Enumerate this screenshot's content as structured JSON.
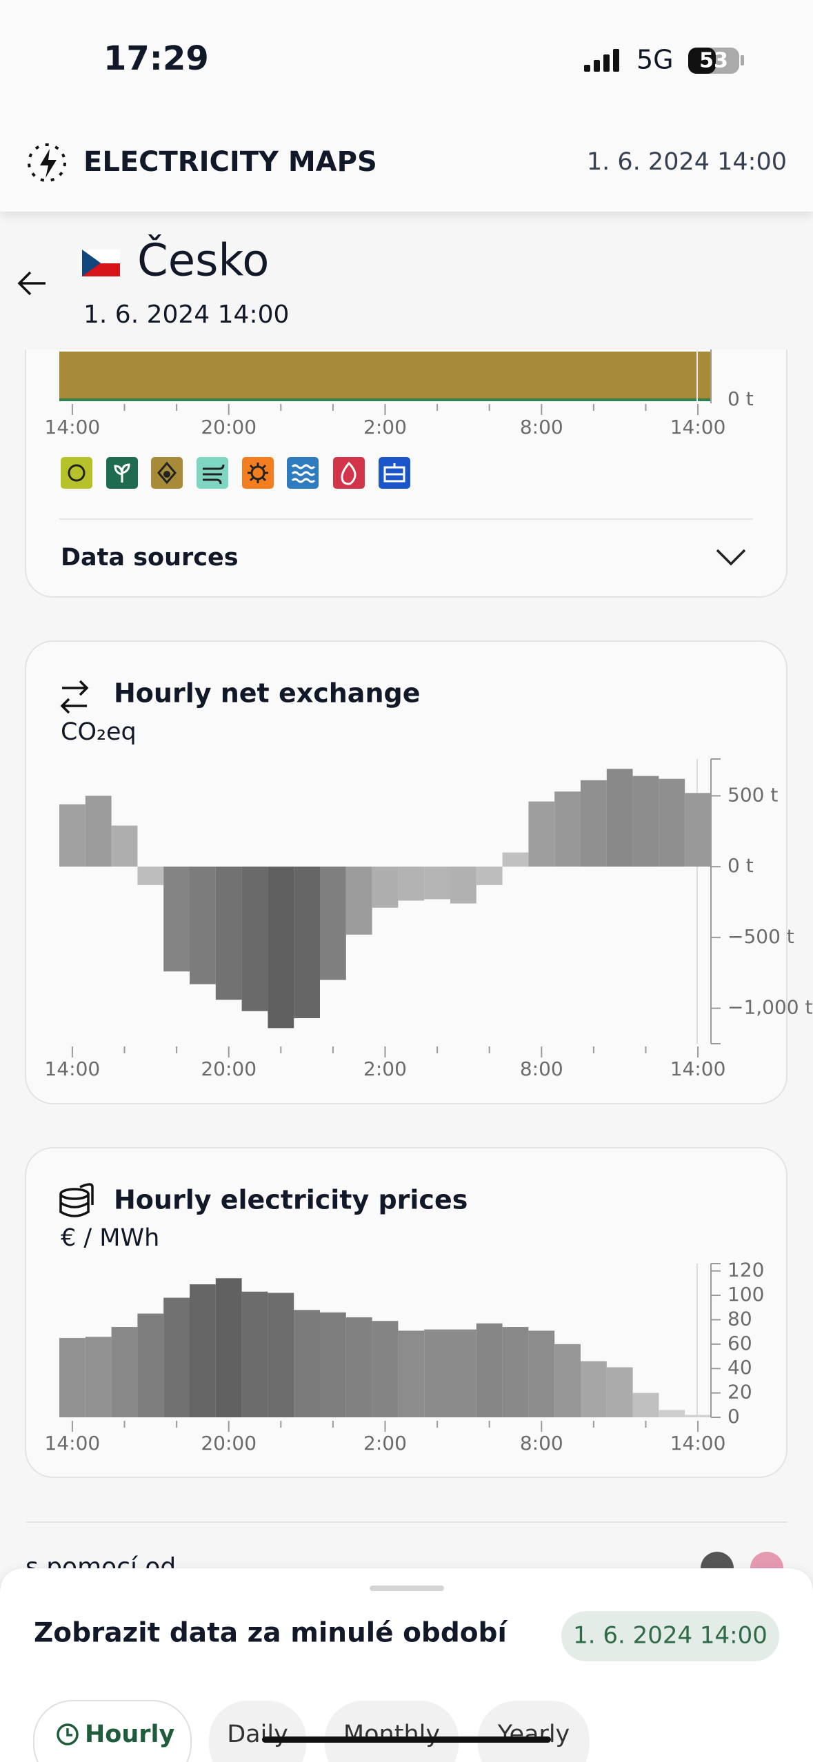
{
  "status_bar": {
    "time": "17:29",
    "network": "5G",
    "battery": "53"
  },
  "header": {
    "brand": "ELECTRICITY MAPS",
    "datetime": "1. 6. 2024 14:00"
  },
  "zone": {
    "name": "Česko",
    "datetime": "1. 6. 2024 14:00"
  },
  "production_card": {
    "axis_label": "0 t",
    "x_labels": [
      "14:00",
      "20:00",
      "2:00",
      "8:00",
      "14:00"
    ],
    "data_sources": "Data sources"
  },
  "exchange_card": {
    "title": "Hourly net exchange",
    "unit": "CO₂eq",
    "chart": {
      "type": "bar",
      "categories": [
        "14:00",
        null,
        null,
        null,
        null,
        null,
        "20:00",
        null,
        null,
        null,
        null,
        null,
        "2:00",
        null,
        null,
        null,
        null,
        null,
        "8:00",
        null,
        null,
        null,
        null,
        null,
        "14:00"
      ],
      "values": [
        440,
        500,
        290,
        -130,
        -740,
        -830,
        -940,
        -1020,
        -1140,
        -1070,
        -800,
        -480,
        -290,
        -240,
        -230,
        -260,
        -130,
        100,
        460,
        530,
        610,
        690,
        640,
        620,
        520
      ],
      "ylim": [
        -1250,
        760
      ],
      "yticks": [
        {
          "value": 500,
          "label": "500 t"
        },
        {
          "value": 0,
          "label": "0 t"
        },
        {
          "value": -500,
          "label": "−500 t"
        },
        {
          "value": -1000,
          "label": "−1,000 t"
        }
      ],
      "color_scale": [
        "#c9c9c9",
        "#5f5f5f"
      ]
    }
  },
  "prices_card": {
    "title": "Hourly electricity prices",
    "unit": "€ / MWh",
    "chart": {
      "type": "bar",
      "categories": [
        "14:00",
        null,
        null,
        null,
        null,
        null,
        "20:00",
        null,
        null,
        null,
        null,
        null,
        "2:00",
        null,
        null,
        null,
        null,
        null,
        "8:00",
        null,
        null,
        null,
        null,
        null,
        "14:00"
      ],
      "values": [
        65,
        66,
        74,
        85,
        98,
        109,
        114,
        103,
        102,
        88,
        86,
        82,
        79,
        71,
        72,
        72,
        77,
        74,
        71,
        60,
        46,
        41,
        20,
        6,
        2
      ],
      "ylim": [
        0,
        126
      ],
      "yticks": [
        0,
        20,
        40,
        60,
        80,
        100,
        120
      ],
      "color_scale": [
        "#d4d4d4",
        "#616161"
      ]
    }
  },
  "footer_partial": "s pomocí od",
  "bottom_sheet": {
    "title": "Zobrazit data za minulé období",
    "datetime": "1. 6. 2024 14:00",
    "tabs": [
      "Hourly",
      "Daily",
      "Monthly",
      "Yearly"
    ]
  }
}
